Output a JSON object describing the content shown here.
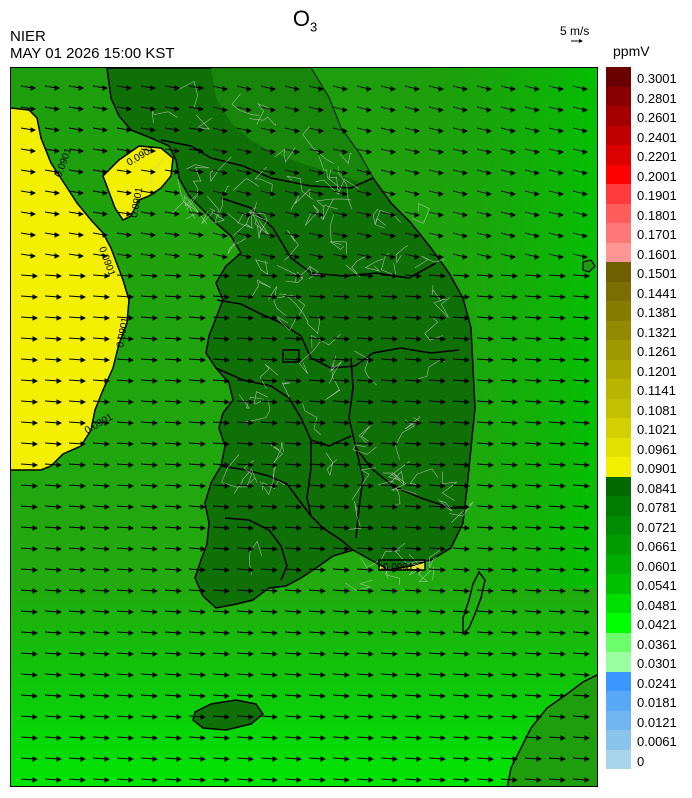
{
  "header": {
    "title": "O",
    "title_sub": "3",
    "agency": "NIER",
    "datetime": "MAY 01 2026 15:00 KST",
    "wind_reference": "5 m/s",
    "units": "ppmV"
  },
  "map": {
    "contour_labels": [
      "0.0901",
      "0.0901",
      "0.0901",
      "0.0901",
      "0.0901",
      "0.0901",
      "0.0901"
    ],
    "colors": {
      "background_green": "#1e9a0a",
      "land_green": "#0f6e06",
      "bright_green": "#00e000",
      "yellow_high": "#f2f000",
      "border": "#000000",
      "district_lines": "#c8c8c8"
    }
  },
  "legend": {
    "labels": [
      "0.3001",
      "0.2801",
      "0.2601",
      "0.2401",
      "0.2201",
      "0.2001",
      "0.1901",
      "0.1801",
      "0.1701",
      "0.1601",
      "0.1501",
      "0.1441",
      "0.1381",
      "0.1321",
      "0.1261",
      "0.1201",
      "0.1141",
      "0.1081",
      "0.1021",
      "0.0961",
      "0.0901",
      "0.0841",
      "0.0781",
      "0.0721",
      "0.0661",
      "0.0601",
      "0.0541",
      "0.0481",
      "0.0421",
      "0.0361",
      "0.0301",
      "0.0241",
      "0.0181",
      "0.0121",
      "0.0061",
      "0"
    ],
    "colors": [
      "#6a0000",
      "#880000",
      "#a40000",
      "#c00000",
      "#dc0000",
      "#ff0000",
      "#ff3a3a",
      "#ff5c5c",
      "#ff7878",
      "#ff9696",
      "#6e6000",
      "#7a6e00",
      "#867c00",
      "#928a00",
      "#a09800",
      "#aca600",
      "#b8b400",
      "#c4c200",
      "#d2d000",
      "#e2e000",
      "#f2f000",
      "#006a00",
      "#007c00",
      "#008c00",
      "#009c00",
      "#00ae00",
      "#00c000",
      "#00e000",
      "#00ff00",
      "#6cff6c",
      "#9affa0",
      "#3c96ff",
      "#58a8f8",
      "#70b6f0",
      "#8ac4ec",
      "#a8d4ec"
    ]
  }
}
